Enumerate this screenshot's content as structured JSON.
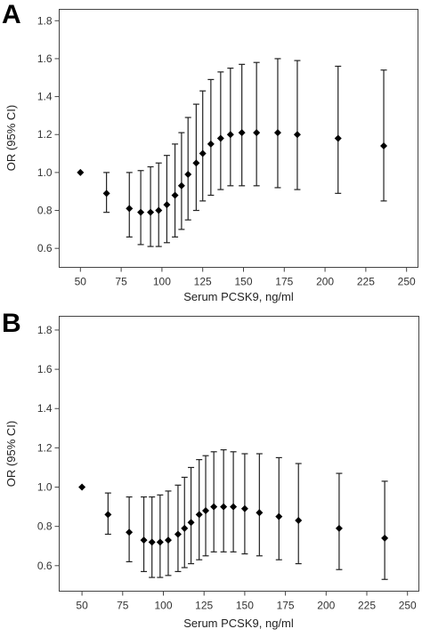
{
  "chart_data": [
    {
      "type": "scatter",
      "panel_label": "A",
      "xlabel": "Serum PCSK9, ng/ml",
      "ylabel": "OR (95% CI)",
      "xlim": [
        37,
        257
      ],
      "ylim": [
        0.5,
        1.86
      ],
      "xticks": [
        "50",
        "75",
        "100",
        "125",
        "150",
        "175",
        "200",
        "225",
        "250"
      ],
      "yticks": [
        "0.6",
        "0.8",
        "1.0",
        "1.2",
        "1.4",
        "1.6",
        "1.8"
      ],
      "grid": false,
      "points": [
        {
          "x": 50,
          "y": 1.0,
          "lo": 1.0,
          "hi": 1.0
        },
        {
          "x": 66,
          "y": 0.89,
          "lo": 0.79,
          "hi": 1.0
        },
        {
          "x": 80,
          "y": 0.81,
          "lo": 0.66,
          "hi": 1.0
        },
        {
          "x": 87,
          "y": 0.79,
          "lo": 0.62,
          "hi": 1.01
        },
        {
          "x": 93,
          "y": 0.79,
          "lo": 0.61,
          "hi": 1.03
        },
        {
          "x": 98,
          "y": 0.8,
          "lo": 0.61,
          "hi": 1.05
        },
        {
          "x": 103,
          "y": 0.83,
          "lo": 0.63,
          "hi": 1.09
        },
        {
          "x": 108,
          "y": 0.88,
          "lo": 0.66,
          "hi": 1.15
        },
        {
          "x": 112,
          "y": 0.93,
          "lo": 0.7,
          "hi": 1.21
        },
        {
          "x": 116,
          "y": 0.99,
          "lo": 0.75,
          "hi": 1.29
        },
        {
          "x": 121,
          "y": 1.05,
          "lo": 0.8,
          "hi": 1.36
        },
        {
          "x": 125,
          "y": 1.1,
          "lo": 0.85,
          "hi": 1.43
        },
        {
          "x": 130,
          "y": 1.15,
          "lo": 0.88,
          "hi": 1.49
        },
        {
          "x": 136,
          "y": 1.18,
          "lo": 0.91,
          "hi": 1.53
        },
        {
          "x": 142,
          "y": 1.2,
          "lo": 0.93,
          "hi": 1.55
        },
        {
          "x": 149,
          "y": 1.21,
          "lo": 0.93,
          "hi": 1.57
        },
        {
          "x": 158,
          "y": 1.21,
          "lo": 0.93,
          "hi": 1.58
        },
        {
          "x": 171,
          "y": 1.21,
          "lo": 0.92,
          "hi": 1.6
        },
        {
          "x": 183,
          "y": 1.2,
          "lo": 0.91,
          "hi": 1.59
        },
        {
          "x": 208,
          "y": 1.18,
          "lo": 0.89,
          "hi": 1.56
        },
        {
          "x": 236,
          "y": 1.14,
          "lo": 0.85,
          "hi": 1.54
        }
      ]
    },
    {
      "type": "scatter",
      "panel_label": "B",
      "xlabel": "Serum PCSK9, ng/ml",
      "ylabel": "OR (95% CI)",
      "xlim": [
        36,
        257
      ],
      "ylim": [
        0.47,
        1.87
      ],
      "xticks": [
        "50",
        "75",
        "100",
        "125",
        "150",
        "175",
        "200",
        "225",
        "250"
      ],
      "yticks": [
        "0.6",
        "0.8",
        "1.0",
        "1.2",
        "1.4",
        "1.6",
        "1.8"
      ],
      "grid": false,
      "points": [
        {
          "x": 50,
          "y": 1.0,
          "lo": 1.0,
          "hi": 1.0
        },
        {
          "x": 66,
          "y": 0.86,
          "lo": 0.76,
          "hi": 0.97
        },
        {
          "x": 79,
          "y": 0.77,
          "lo": 0.62,
          "hi": 0.95
        },
        {
          "x": 88,
          "y": 0.73,
          "lo": 0.57,
          "hi": 0.95
        },
        {
          "x": 93,
          "y": 0.72,
          "lo": 0.54,
          "hi": 0.95
        },
        {
          "x": 98,
          "y": 0.72,
          "lo": 0.54,
          "hi": 0.96
        },
        {
          "x": 103,
          "y": 0.73,
          "lo": 0.55,
          "hi": 0.98
        },
        {
          "x": 109,
          "y": 0.76,
          "lo": 0.57,
          "hi": 1.01
        },
        {
          "x": 113,
          "y": 0.79,
          "lo": 0.59,
          "hi": 1.05
        },
        {
          "x": 117,
          "y": 0.82,
          "lo": 0.61,
          "hi": 1.1
        },
        {
          "x": 122,
          "y": 0.86,
          "lo": 0.63,
          "hi": 1.14
        },
        {
          "x": 126,
          "y": 0.88,
          "lo": 0.65,
          "hi": 1.16
        },
        {
          "x": 131,
          "y": 0.9,
          "lo": 0.67,
          "hi": 1.18
        },
        {
          "x": 137,
          "y": 0.9,
          "lo": 0.67,
          "hi": 1.19
        },
        {
          "x": 143,
          "y": 0.9,
          "lo": 0.67,
          "hi": 1.18
        },
        {
          "x": 150,
          "y": 0.89,
          "lo": 0.66,
          "hi": 1.17
        },
        {
          "x": 159,
          "y": 0.87,
          "lo": 0.65,
          "hi": 1.17
        },
        {
          "x": 171,
          "y": 0.85,
          "lo": 0.63,
          "hi": 1.15
        },
        {
          "x": 183,
          "y": 0.83,
          "lo": 0.61,
          "hi": 1.12
        },
        {
          "x": 208,
          "y": 0.79,
          "lo": 0.58,
          "hi": 1.07
        },
        {
          "x": 236,
          "y": 0.74,
          "lo": 0.53,
          "hi": 1.03
        }
      ]
    }
  ]
}
